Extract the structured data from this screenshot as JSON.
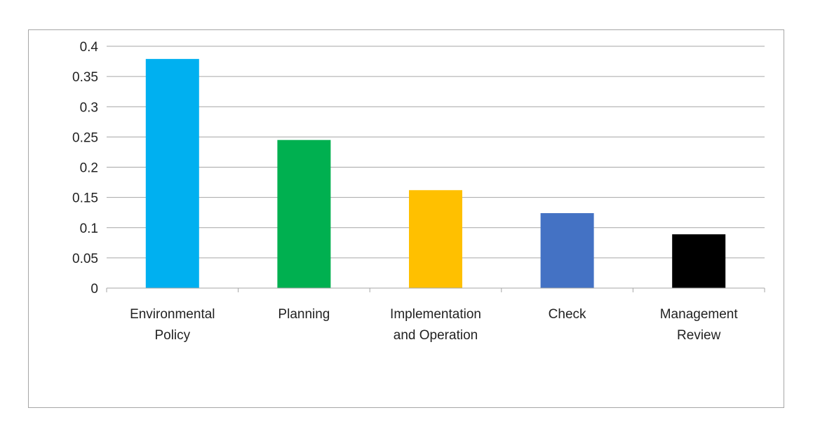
{
  "chart_data": {
    "type": "bar",
    "title": "",
    "xlabel": "",
    "ylabel": "",
    "categories": [
      [
        "Environmental",
        "Policy"
      ],
      [
        "Planning"
      ],
      [
        "Implementation",
        "and Operation"
      ],
      [
        "Check"
      ],
      [
        "Management",
        "Review"
      ]
    ],
    "values": [
      0.379,
      0.245,
      0.162,
      0.124,
      0.089
    ],
    "colors": [
      "#00b0f0",
      "#00b050",
      "#ffc000",
      "#4472c4",
      "#000000"
    ],
    "ylim": [
      0,
      0.4
    ],
    "yticks": [
      0,
      0.05,
      0.1,
      0.15,
      0.2,
      0.25,
      0.3,
      0.35,
      0.4
    ],
    "ytick_labels": [
      "0",
      "0.05",
      "0.1",
      "0.15",
      "0.2",
      "0.25",
      "0.3",
      "0.35",
      "0.4"
    ],
    "grid": true,
    "legend": "none",
    "gridline_color": "#a6a6a6"
  }
}
